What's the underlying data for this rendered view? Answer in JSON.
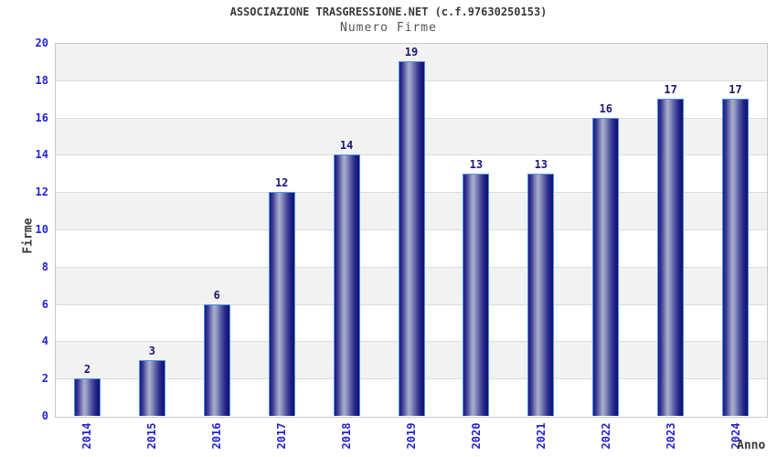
{
  "header": {
    "title": "ASSOCIAZIONE TRASGRESSIONE.NET (c.f.97630250153)",
    "subtitle": "Numero Firme"
  },
  "chart_data": {
    "type": "bar",
    "title": "Numero Firme",
    "categories": [
      "2014",
      "2015",
      "2016",
      "2017",
      "2018",
      "2019",
      "2020",
      "2021",
      "2022",
      "2023",
      "2024"
    ],
    "values": [
      2,
      3,
      6,
      12,
      14,
      19,
      13,
      13,
      16,
      17,
      17
    ],
    "xlabel": "Anno",
    "ylabel": "Firme",
    "ylim": [
      0,
      20
    ],
    "y_ticks": [
      0,
      2,
      4,
      6,
      8,
      10,
      12,
      14,
      16,
      18,
      20
    ],
    "grid": "horizontal gridlines every 2 units with alternating white/gray bands",
    "legend_position": "none"
  },
  "colors": {
    "bar_dark": "#14147e",
    "bar_light": "#a9aecd",
    "bar_border": "#4b96e8",
    "axis_label_blue": "#2323cc",
    "value_label_navy": "#1a1a70",
    "band_gray": "#f2f2f2",
    "grid_line": "#dcdcdc",
    "plot_border": "#c8c8c8",
    "title_color": "#3a3a3a",
    "subtitle_color": "#555555"
  }
}
